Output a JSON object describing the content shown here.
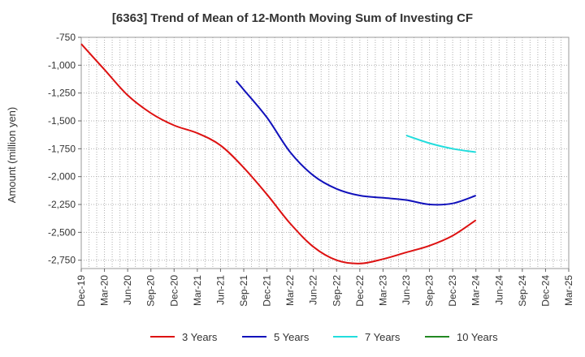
{
  "chart_data": {
    "type": "line",
    "title": "[6363]  Trend of Mean of 12-Month Moving Sum of Investing CF",
    "ylabel": "Amount (million yen)",
    "xlabel": "",
    "ylim": [
      -2825,
      -750
    ],
    "yticks": [
      -750,
      -1000,
      -1250,
      -1500,
      -1750,
      -2000,
      -2250,
      -2500,
      -2750
    ],
    "ytick_labels": [
      "-750",
      "-1,000",
      "-1,250",
      "-1,500",
      "-1,750",
      "-2,000",
      "-2,250",
      "-2,500",
      "-2,750"
    ],
    "xticks": [
      "Dec-19",
      "Mar-20",
      "Jun-20",
      "Sep-20",
      "Dec-20",
      "Mar-21",
      "Jun-21",
      "Sep-21",
      "Dec-21",
      "Mar-22",
      "Jun-22",
      "Sep-22",
      "Dec-22",
      "Mar-23",
      "Jun-23",
      "Sep-23",
      "Dec-23",
      "Mar-24",
      "Jun-24",
      "Sep-24",
      "Dec-24",
      "Mar-25"
    ],
    "grid": true,
    "legend_position": "bottom",
    "series": [
      {
        "name": "3 Years",
        "color": "#dd1111",
        "points": [
          [
            0,
            -810
          ],
          [
            1,
            -1040
          ],
          [
            2,
            -1270
          ],
          [
            3,
            -1430
          ],
          [
            4,
            -1540
          ],
          [
            5,
            -1610
          ],
          [
            6,
            -1720
          ],
          [
            7,
            -1920
          ],
          [
            8,
            -2160
          ],
          [
            9,
            -2420
          ],
          [
            10,
            -2630
          ],
          [
            11,
            -2750
          ],
          [
            12,
            -2780
          ],
          [
            13,
            -2740
          ],
          [
            14,
            -2680
          ],
          [
            15,
            -2620
          ],
          [
            16,
            -2530
          ],
          [
            17,
            -2390
          ]
        ]
      },
      {
        "name": "5 Years",
        "color": "#1111bb",
        "points": [
          [
            6.67,
            -1140
          ],
          [
            7,
            -1220
          ],
          [
            8,
            -1470
          ],
          [
            9,
            -1780
          ],
          [
            10,
            -1990
          ],
          [
            11,
            -2110
          ],
          [
            12,
            -2170
          ],
          [
            13,
            -2190
          ],
          [
            14,
            -2210
          ],
          [
            15,
            -2250
          ],
          [
            16,
            -2240
          ],
          [
            17,
            -2170
          ]
        ]
      },
      {
        "name": "7 Years",
        "color": "#22dddd",
        "points": [
          [
            14,
            -1630
          ],
          [
            15,
            -1700
          ],
          [
            16,
            -1750
          ],
          [
            17,
            -1780
          ]
        ]
      },
      {
        "name": "10 Years",
        "color": "#228822",
        "points": []
      }
    ]
  }
}
